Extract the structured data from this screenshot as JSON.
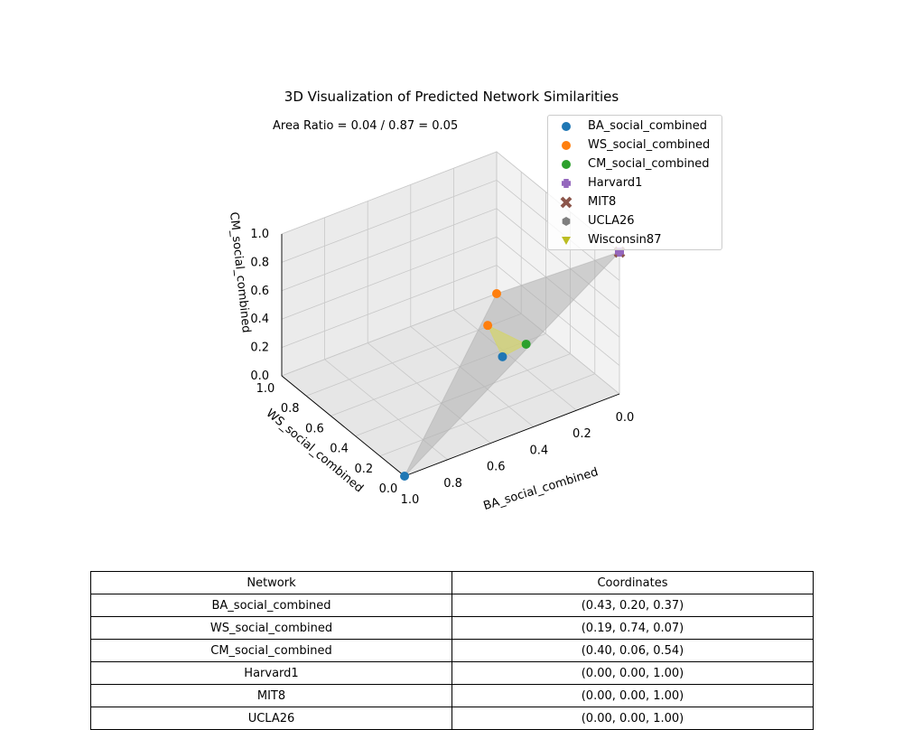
{
  "chart_data": {
    "type": "scatter",
    "title": "3D Visualization of Predicted Network Similarities",
    "annotation": "Area Ratio = 0.04 / 0.87 = 0.05",
    "xlabel": "BA_social_combined",
    "ylabel": "WS_social_combined",
    "zlabel": "CM_social_combined",
    "xlim": [
      0,
      1
    ],
    "ylim": [
      0,
      1
    ],
    "zlim": [
      0,
      1
    ],
    "x_ticks": [
      "0.0",
      "0.2",
      "0.4",
      "0.6",
      "0.8",
      "1.0"
    ],
    "y_ticks": [
      "0.0",
      "0.2",
      "0.4",
      "0.6",
      "0.8",
      "1.0"
    ],
    "z_ticks": [
      "0.0",
      "0.2",
      "0.4",
      "0.6",
      "0.8",
      "1.0"
    ],
    "grid": true,
    "legend_position": "top-right",
    "series": [
      {
        "name": "BA_social_combined",
        "marker": "circle",
        "color": "#1f77b4",
        "points": [
          {
            "x": 0.43,
            "y": 0.2,
            "z": 0.37
          },
          {
            "x": 1.0,
            "y": 0.0,
            "z": 0.0
          }
        ]
      },
      {
        "name": "WS_social_combined",
        "marker": "circle",
        "color": "#ff7f0e",
        "points": [
          {
            "x": 0.19,
            "y": 0.74,
            "z": 0.07
          },
          {
            "x": 0.0,
            "y": 1.0,
            "z": 0.0
          }
        ]
      },
      {
        "name": "CM_social_combined",
        "marker": "circle",
        "color": "#2ca02c",
        "points": [
          {
            "x": 0.4,
            "y": 0.06,
            "z": 0.54
          }
        ]
      },
      {
        "name": "Harvard1",
        "marker": "plus",
        "color": "#9467bd",
        "points": [
          {
            "x": 0.0,
            "y": 0.0,
            "z": 1.0
          }
        ]
      },
      {
        "name": "MIT8",
        "marker": "x",
        "color": "#8c564b",
        "points": [
          {
            "x": 0.0,
            "y": 0.0,
            "z": 1.0
          }
        ]
      },
      {
        "name": "UCLA26",
        "marker": "hexagon",
        "color": "#7f7f7f",
        "points": [
          {
            "x": 0.0,
            "y": 0.0,
            "z": 1.0
          }
        ]
      },
      {
        "name": "Wisconsin87",
        "marker": "triangle-down",
        "color": "#bcbd22",
        "points": [
          {
            "x": 0.0,
            "y": 0.0,
            "z": 1.0
          }
        ]
      }
    ],
    "simplex_triangle": {
      "color": "#b0b0b0",
      "vertices": [
        {
          "x": 1,
          "y": 0,
          "z": 0
        },
        {
          "x": 0,
          "y": 1,
          "z": 0
        },
        {
          "x": 0,
          "y": 0,
          "z": 1
        }
      ]
    },
    "predicted_triangle": {
      "color": "#d4d46a",
      "vertices": [
        {
          "x": 0.43,
          "y": 0.2,
          "z": 0.37
        },
        {
          "x": 0.19,
          "y": 0.74,
          "z": 0.07
        },
        {
          "x": 0.4,
          "y": 0.06,
          "z": 0.54
        }
      ]
    }
  },
  "table": {
    "headers": [
      "Network",
      "Coordinates"
    ],
    "rows": [
      [
        "BA_social_combined",
        "(0.43, 0.20, 0.37)"
      ],
      [
        "WS_social_combined",
        "(0.19, 0.74, 0.07)"
      ],
      [
        "CM_social_combined",
        "(0.40, 0.06, 0.54)"
      ],
      [
        "Harvard1",
        "(0.00, 0.00, 1.00)"
      ],
      [
        "MIT8",
        "(0.00, 0.00, 1.00)"
      ],
      [
        "UCLA26",
        "(0.00, 0.00, 1.00)"
      ]
    ]
  }
}
